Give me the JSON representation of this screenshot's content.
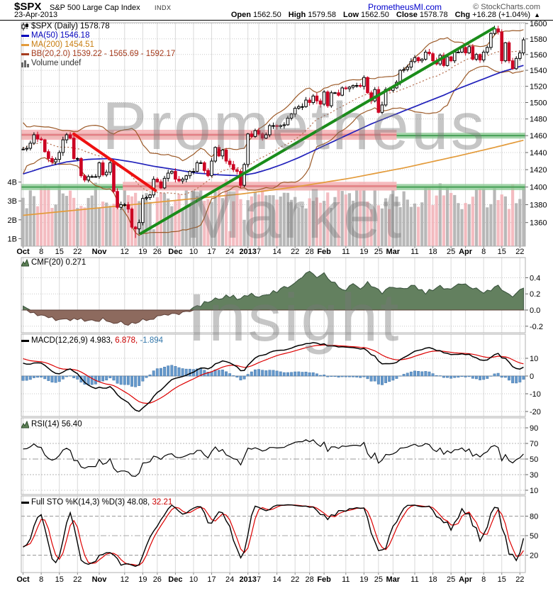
{
  "header": {
    "symbol": "$SPX",
    "name": "S&P 500 Large Cap Index",
    "exchange": "INDX",
    "date": "23-Apr-2013",
    "site_link": "PrometheusMI.com",
    "copyright": "© StockCharts.com",
    "quote": {
      "open_label": "Open",
      "open": "1562.50",
      "high_label": "High",
      "high": "1579.58",
      "low_label": "Low",
      "low": "1562.50",
      "close_label": "Close",
      "close": "1578.78",
      "chg_label": "Chg",
      "chg": "+16.28 (+1.04%)",
      "chg_dir": "▲"
    }
  },
  "legends": {
    "main": {
      "symbol_line": "$SPX (Daily) 1578.78",
      "ma50": "MA(50) 1546.18",
      "ma200": "MA(200) 1454.51",
      "bb": "BB(20,2.0) 1539.22 - 1565.69 - 1592.17",
      "volume": "Volume undef"
    },
    "cmf": {
      "label": "CMF(20) 0.271"
    },
    "macd": {
      "label": "MACD(12,26,9) 4.983,",
      "signal": "6.878,",
      "hist": "-1.894"
    },
    "rsi": {
      "label": "RSI(14) 56.40"
    },
    "sto": {
      "label": "Full STO %K(14,3) %D(3) 48.08,",
      "d_value": "32.21"
    }
  },
  "watermark": [
    "Prometheus",
    "Market",
    "Insight"
  ],
  "colors": {
    "up_candle": "#ffffff",
    "up_stroke": "#000000",
    "down_candle": "#cc0022",
    "ma50": "#2222bb",
    "ma200": "#e39b3b",
    "bollinger": "#9c5a28",
    "bollinger_mid": "#b26a4a",
    "green_band": "#8fca96",
    "green_band_core": "#3c9a4c",
    "pink_band": "#f6b6ba",
    "pink_band_core": "#e2767c",
    "trend_red": "#ee1111",
    "trend_green": "#1a8c1a",
    "vol_up": "#ababab",
    "vol_down": "#f2b0b6",
    "cmf_pos": "#63805f",
    "cmf_pos_edge": "#36503a",
    "cmf_neg": "#8d6a5e",
    "cmf_neg_edge": "#5e4038",
    "macd_hist": "#6699cc",
    "macd_hist_edge": "#4477aa",
    "macd_line": "#000000",
    "macd_signal": "#dd0000",
    "rsi_line": "#000000",
    "sto_k": "#000000",
    "sto_d": "#dd0000",
    "grid": "#d9d9d9",
    "grid_dot": "#c9c9c9",
    "border": "#b0b0b0",
    "watermark": "#777777"
  },
  "chart_data": {
    "type": "candlestick",
    "symbol": "$SPX",
    "timeframe": "Daily",
    "log_scale": true,
    "price_range": [
      1334,
      1601
    ],
    "price_ticks": [
      1360,
      1380,
      1400,
      1420,
      1440,
      1460,
      1480,
      1500,
      1520,
      1540,
      1560,
      1580,
      1600
    ],
    "volume_ticks": [
      [
        "1B",
        1
      ],
      [
        "2B",
        2
      ],
      [
        "3B",
        3
      ],
      [
        "4B",
        4
      ]
    ],
    "x_labels": [
      [
        "Oct",
        0
      ],
      [
        "8",
        5
      ],
      [
        "15",
        10
      ],
      [
        "22",
        15
      ],
      [
        "Nov",
        21
      ],
      [
        "12",
        28
      ],
      [
        "19",
        33
      ],
      [
        "26",
        37
      ],
      [
        "Dec",
        42
      ],
      [
        "10",
        47
      ],
      [
        "17",
        52
      ],
      [
        "24",
        57
      ],
      [
        "2013",
        62
      ],
      [
        "7",
        65
      ],
      [
        "14",
        70
      ],
      [
        "22",
        75
      ],
      [
        "28",
        79
      ],
      [
        "Feb",
        83
      ],
      [
        "11",
        89
      ],
      [
        "19",
        94
      ],
      [
        "25",
        98
      ],
      [
        "Mar",
        102
      ],
      [
        "11",
        108
      ],
      [
        "18",
        113
      ],
      [
        "25",
        118
      ],
      [
        "Apr",
        122
      ],
      [
        "8",
        127
      ],
      [
        "15",
        132
      ],
      [
        "22",
        137
      ]
    ],
    "pre_closes": [
      1405,
      1403,
      1432,
      1438,
      1429,
      1434,
      1437,
      1460,
      1466,
      1461,
      1459,
      1461,
      1460,
      1460,
      1457,
      1441,
      1433,
      1447,
      1441,
      1444
    ],
    "closes": [
      1444,
      1445,
      1451,
      1461,
      1456,
      1455,
      1441,
      1433,
      1429,
      1432,
      1440,
      1455,
      1461,
      1457,
      1433,
      1433,
      1413,
      1408,
      1412,
      1412,
      1412,
      1428,
      1414,
      1417,
      1428,
      1395,
      1377,
      1380,
      1380,
      1375,
      1355,
      1353,
      1360,
      1387,
      1388,
      1391,
      1409,
      1406,
      1399,
      1410,
      1416,
      1418,
      1409,
      1407,
      1409,
      1413,
      1418,
      1418,
      1428,
      1428,
      1419,
      1413,
      1430,
      1446,
      1436,
      1443,
      1430,
      1426,
      1420,
      1418,
      1402,
      1426,
      1462,
      1459,
      1466,
      1462,
      1457,
      1461,
      1472,
      1472,
      1471,
      1472,
      1473,
      1481,
      1486,
      1493,
      1495,
      1495,
      1503,
      1500,
      1508,
      1502,
      1498,
      1513,
      1496,
      1512,
      1512,
      1509,
      1518,
      1517,
      1519,
      1521,
      1521,
      1520,
      1531,
      1512,
      1502,
      1516,
      1488,
      1497,
      1516,
      1515,
      1518,
      1525,
      1540,
      1541,
      1544,
      1551,
      1556,
      1552,
      1554,
      1563,
      1561,
      1552,
      1548,
      1559,
      1546,
      1557,
      1552,
      1563,
      1563,
      1569,
      1562,
      1570,
      1554,
      1560,
      1553,
      1563,
      1569,
      1587,
      1593,
      1589,
      1552,
      1575,
      1552,
      1542,
      1555,
      1562,
      1578.78
    ],
    "low_overrides": [
      [
        31,
        1343
      ],
      [
        32,
        1347
      ]
    ],
    "high_overrides": [
      [
        130,
        1597
      ],
      [
        3,
        1464
      ]
    ],
    "volume": {
      "min": 2.55,
      "max": 4.0,
      "spikes": [
        [
          36,
          1.5
        ],
        [
          56,
          4.15
        ],
        [
          57,
          1.4
        ],
        [
          61,
          2.0
        ],
        [
          93,
          4.0
        ]
      ]
    },
    "ma50_waypoints": [
      [
        0,
        1415
      ],
      [
        6,
        1423
      ],
      [
        12,
        1429
      ],
      [
        18,
        1432
      ],
      [
        24,
        1433
      ],
      [
        30,
        1429
      ],
      [
        36,
        1424
      ],
      [
        42,
        1420
      ],
      [
        48,
        1416
      ],
      [
        54,
        1414
      ],
      [
        60,
        1413
      ],
      [
        64,
        1416
      ],
      [
        68,
        1421
      ],
      [
        72,
        1427
      ],
      [
        76,
        1434
      ],
      [
        80,
        1442
      ],
      [
        84,
        1450
      ],
      [
        88,
        1458
      ],
      [
        92,
        1466
      ],
      [
        96,
        1474
      ],
      [
        100,
        1481
      ],
      [
        104,
        1488
      ],
      [
        108,
        1495
      ],
      [
        112,
        1502
      ],
      [
        116,
        1509
      ],
      [
        120,
        1517
      ],
      [
        124,
        1524
      ],
      [
        128,
        1531
      ],
      [
        132,
        1538
      ],
      [
        135,
        1542
      ],
      [
        138,
        1546.18
      ]
    ],
    "ma200_waypoints": [
      [
        0,
        1368
      ],
      [
        15,
        1374
      ],
      [
        30,
        1380
      ],
      [
        45,
        1386
      ],
      [
        60,
        1392
      ],
      [
        75,
        1400
      ],
      [
        90,
        1410
      ],
      [
        105,
        1422
      ],
      [
        120,
        1436
      ],
      [
        130,
        1446
      ],
      [
        138,
        1454.51
      ]
    ],
    "bollinger": {
      "period": 20,
      "std_dev": 2.0,
      "last": [
        1539.22,
        1565.69,
        1592.17
      ]
    },
    "green_bands": [
      1460,
      1400
    ],
    "pink_bands": [
      {
        "price": 1461,
        "half": 6,
        "from": 0,
        "to": 103
      },
      {
        "price": 1401,
        "half": 5,
        "from": 28,
        "to": 103
      }
    ],
    "trendlines": [
      {
        "name": "resistance",
        "color": "trend_red",
        "from": [
          14,
          1462
        ],
        "to": [
          36.5,
          1396
        ]
      },
      {
        "name": "support",
        "color": "trend_green",
        "from": [
          32.5,
          1348
        ],
        "to": [
          129.8,
          1594
        ]
      }
    ],
    "cmf": {
      "period": 20,
      "last": 0.271,
      "ticks": [
        0.4,
        0.2,
        0.0,
        -0.2
      ],
      "waypoints": [
        [
          0,
          0.04
        ],
        [
          2,
          -0.02
        ],
        [
          6,
          -0.08
        ],
        [
          10,
          -0.13
        ],
        [
          14,
          -0.1
        ],
        [
          18,
          -0.14
        ],
        [
          22,
          -0.11
        ],
        [
          26,
          -0.16
        ],
        [
          30,
          -0.17
        ],
        [
          34,
          -0.12
        ],
        [
          38,
          -0.08
        ],
        [
          42,
          -0.05
        ],
        [
          46,
          -0.01
        ],
        [
          48,
          0.05
        ],
        [
          52,
          0.12
        ],
        [
          56,
          0.17
        ],
        [
          60,
          0.15
        ],
        [
          63,
          0.2
        ],
        [
          66,
          0.17
        ],
        [
          69,
          0.22
        ],
        [
          72,
          0.27
        ],
        [
          75,
          0.32
        ],
        [
          77,
          0.4
        ],
        [
          79,
          0.47
        ],
        [
          81,
          0.42
        ],
        [
          83,
          0.46
        ],
        [
          85,
          0.36
        ],
        [
          87,
          0.3
        ],
        [
          89,
          0.25
        ],
        [
          91,
          0.32
        ],
        [
          93,
          0.28
        ],
        [
          95,
          0.33
        ],
        [
          97,
          0.27
        ],
        [
          99,
          0.22
        ],
        [
          101,
          0.26
        ],
        [
          103,
          0.29
        ],
        [
          105,
          0.27
        ],
        [
          107,
          0.31
        ],
        [
          109,
          0.26
        ],
        [
          111,
          0.22
        ],
        [
          113,
          0.26
        ],
        [
          115,
          0.29
        ],
        [
          117,
          0.26
        ],
        [
          119,
          0.3
        ],
        [
          121,
          0.33
        ],
        [
          123,
          0.3
        ],
        [
          125,
          0.25
        ],
        [
          127,
          0.21
        ],
        [
          129,
          0.26
        ],
        [
          131,
          0.3
        ],
        [
          133,
          0.24
        ],
        [
          135,
          0.17
        ],
        [
          137,
          0.23
        ],
        [
          138,
          0.271
        ]
      ]
    },
    "macd": {
      "fast": 12,
      "slow": 26,
      "signal": 9,
      "last": [
        4.983,
        6.878,
        -1.894
      ],
      "ticks": [
        10,
        0,
        -10,
        -20
      ]
    },
    "rsi": {
      "period": 14,
      "last": 56.4,
      "ticks": [
        90,
        70,
        50,
        30,
        10
      ]
    },
    "sto": {
      "k": 14,
      "k_smooth": 3,
      "d": 3,
      "last": [
        48.08,
        32.21
      ],
      "ticks": [
        80,
        50,
        20
      ]
    }
  }
}
